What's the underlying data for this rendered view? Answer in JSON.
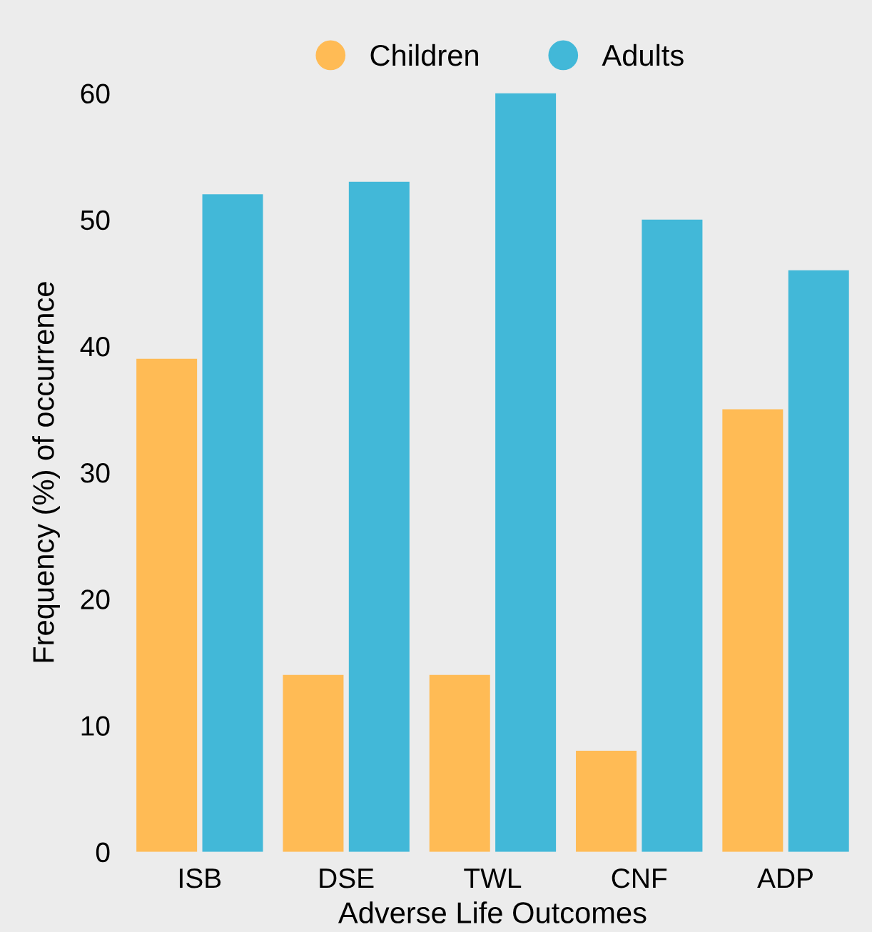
{
  "chart_data": {
    "type": "bar",
    "xlabel": "Adverse Life Outcomes",
    "ylabel": "Frequency (%) of occurrence",
    "categories": [
      "ISB",
      "DSE",
      "TWL",
      "CNF",
      "ADP"
    ],
    "series": [
      {
        "name": "Children",
        "color": "#ffbb55",
        "values": [
          39,
          14,
          14,
          8,
          35
        ]
      },
      {
        "name": "Adults",
        "color": "#42b8d8",
        "values": [
          52,
          53,
          60,
          50,
          46
        ]
      }
    ],
    "ylim": [
      0,
      60
    ],
    "yticks": [
      0,
      10,
      20,
      30,
      40,
      50,
      60
    ],
    "grid": false,
    "legend": "top"
  }
}
